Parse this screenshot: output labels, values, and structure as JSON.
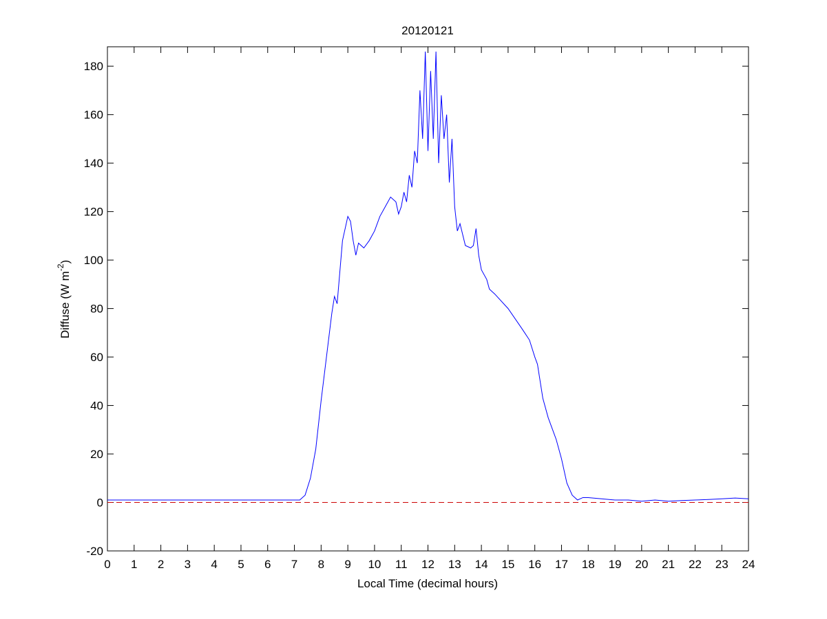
{
  "chart_data": {
    "type": "line",
    "title": "20120121",
    "x_label": "Local Time (decimal hours)",
    "y_label": "Diffuse (W m",
    "y_label_superscript": "-2",
    "y_label_end": ")",
    "xlim": [
      0,
      24
    ],
    "xticks": [
      0,
      1,
      2,
      3,
      4,
      5,
      6,
      7,
      8,
      9,
      10,
      11,
      12,
      13,
      14,
      15,
      16,
      17,
      18,
      19,
      20,
      21,
      22,
      23,
      24
    ],
    "ylim": [
      -20,
      188
    ],
    "yticks": [
      -20,
      0,
      20,
      40,
      60,
      80,
      100,
      120,
      140,
      160,
      180
    ],
    "reference_line": {
      "value": 0,
      "color": "#cc0000",
      "dashed": true
    },
    "series": [
      {
        "color": "#0000ff",
        "x": [
          0,
          1,
          2,
          3,
          4,
          5,
          6,
          7,
          7.2,
          7.4,
          7.6,
          7.8,
          8.0,
          8.2,
          8.4,
          8.5,
          8.6,
          8.7,
          8.8,
          9.0,
          9.1,
          9.2,
          9.3,
          9.4,
          9.6,
          9.8,
          10.0,
          10.2,
          10.4,
          10.6,
          10.8,
          10.9,
          11.0,
          11.1,
          11.2,
          11.3,
          11.4,
          11.5,
          11.6,
          11.7,
          11.8,
          11.9,
          12.0,
          12.1,
          12.2,
          12.3,
          12.4,
          12.5,
          12.6,
          12.7,
          12.8,
          12.9,
          13.0,
          13.1,
          13.2,
          13.4,
          13.6,
          13.7,
          13.8,
          13.9,
          14.0,
          14.2,
          14.3,
          14.5,
          15.0,
          15.5,
          15.8,
          16.0,
          16.1,
          16.2,
          16.3,
          16.5,
          16.8,
          17.0,
          17.2,
          17.4,
          17.6,
          17.8,
          18,
          18.5,
          19,
          19.5,
          20,
          20.5,
          21,
          21.5,
          22,
          22.5,
          23,
          23.5,
          24
        ],
        "values": [
          1,
          1,
          1,
          1,
          1,
          1,
          1,
          1,
          1,
          3,
          10,
          22,
          42,
          60,
          78,
          85,
          82,
          95,
          108,
          118,
          116,
          108,
          102,
          107,
          105,
          108,
          112,
          118,
          122,
          126,
          124,
          119,
          122,
          128,
          124,
          135,
          130,
          145,
          140,
          170,
          150,
          186,
          145,
          178,
          150,
          186,
          140,
          168,
          150,
          160,
          132,
          150,
          122,
          112,
          115,
          106,
          105,
          106,
          113,
          102,
          96,
          92,
          88,
          86,
          80,
          72,
          67,
          60,
          57,
          50,
          43,
          35,
          26,
          18,
          8,
          3,
          1,
          2,
          2,
          1.5,
          1,
          1,
          0.5,
          1,
          0.5,
          0.8,
          1,
          1.2,
          1.5,
          1.8,
          1.5
        ]
      }
    ]
  }
}
